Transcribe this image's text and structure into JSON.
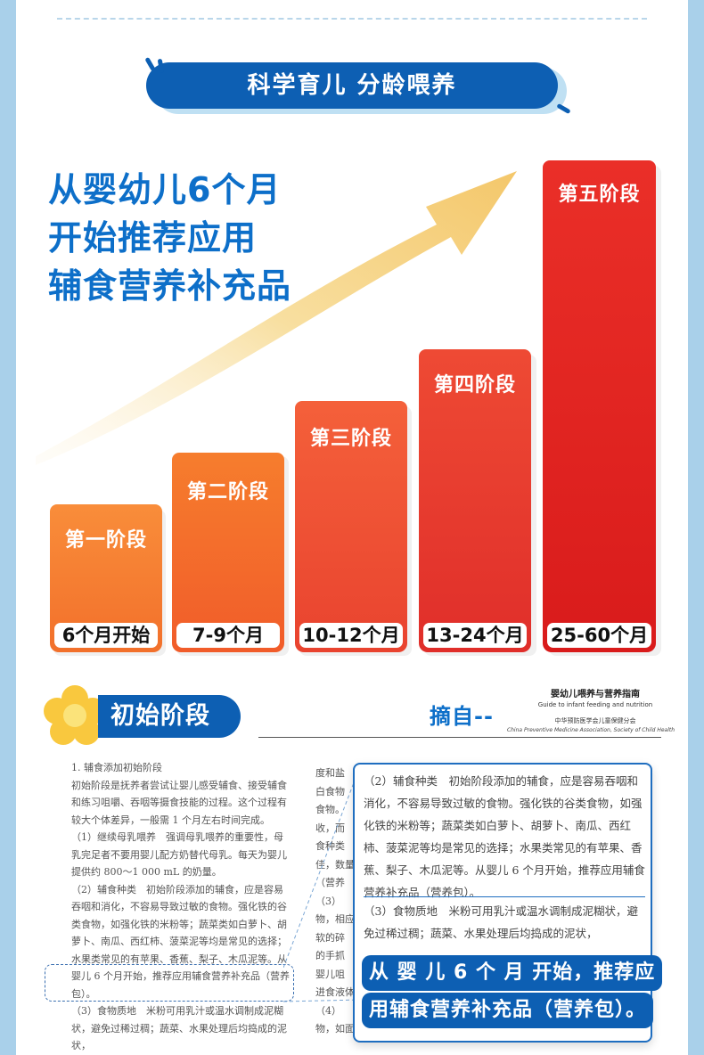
{
  "header": {
    "banner": "科学育儿 分龄喂养"
  },
  "headline": [
    "从婴幼儿6个月",
    "开始推荐应用",
    "辅食营养补充品"
  ],
  "stages": [
    {
      "title": "第一阶段",
      "range": "6个月开始",
      "color": "#f47a2b"
    },
    {
      "title": "第二阶段",
      "range": "7-9个月",
      "color": "#f26a2a"
    },
    {
      "title": "第三阶段",
      "range": "10-12个月",
      "color": "#ec5230"
    },
    {
      "title": "第四阶段",
      "range": "13-24个月",
      "color": "#e43a2c"
    },
    {
      "title": "第五阶段",
      "range": "25-60个月",
      "color": "#dc1f1f"
    }
  ],
  "section": {
    "tag": "初始阶段",
    "excerpt_label": "摘自--",
    "book_title": "婴幼儿喂养与营养指南",
    "book_subtitle": "Guide to infant feeding and nutrition",
    "book_org": "中华预防医学会儿童保健分会",
    "book_org_en": "China Preventive Medicine Association, Society of Child Health"
  },
  "document": {
    "left": [
      "1. 辅食添加初始阶段",
      "初始阶段是抚养者尝试让婴儿感受辅食、接受辅食和练习咀嚼、吞咽等摄食技能的过程。这个过程有较大个体差异，一般需 1 个月左右时间完成。",
      "（1）继续母乳喂养　强调母乳喂养的重要性，母乳完足者不要用婴儿配方奶替代母乳。每天为婴儿提供约 800～1 000 mL 的奶量。",
      "（2）辅食种类　初始阶段添加的辅食，应是容易吞咽和消化，不容易导致过敏的食物。强化铁的谷类食物，如强化铁的米粉等；蔬菜类如白萝卜、胡萝卜、南瓜、西红柿、菠菜泥等均是常见的选择；水果类常见的有苹果、香蕉、梨子、木瓜泥等。从婴儿 6 个月开始，推荐应用辅食营养补充品（营养包）。",
      "（3）食物质地　米粉可用乳汁或温水调制成泥糊状，避免过稀过稠；蔬菜、水果处理后均捣成的泥状，"
    ],
    "middle": [
      "度和盐",
      "白食物",
      "食物。",
      "收，而",
      "食种类",
      "佳，数量",
      "（营养",
      "（3）",
      "物，相应",
      "软的碎",
      "的手抓",
      "婴儿咀",
      "进食液体",
      "（4）",
      "物，如面"
    ]
  },
  "zoom": {
    "para1": "（2）辅食种类　初始阶段添加的辅食，应是容易吞咽和消化，不容易导致过敏的食物。强化铁的谷类食物，如强化铁的米粉等；蔬菜类如白萝卜、胡萝卜、南瓜、西红柿、菠菜泥等均是常见的选择；水果类常见的有苹果、香蕉、梨子、木瓜泥等。从婴儿 6 个月开始，推荐应用辅食营养补充品（营养包）。",
    "para2": "（3）食物质地　米粉可用乳汁或温水调制成泥糊状，避免过稀过稠；蔬菜、水果处理后均捣成的泥状，",
    "callout1": "从 婴 儿 6 个 月 开始，推荐应",
    "callout2": "用辅食营养补充品（营养包）。"
  }
}
